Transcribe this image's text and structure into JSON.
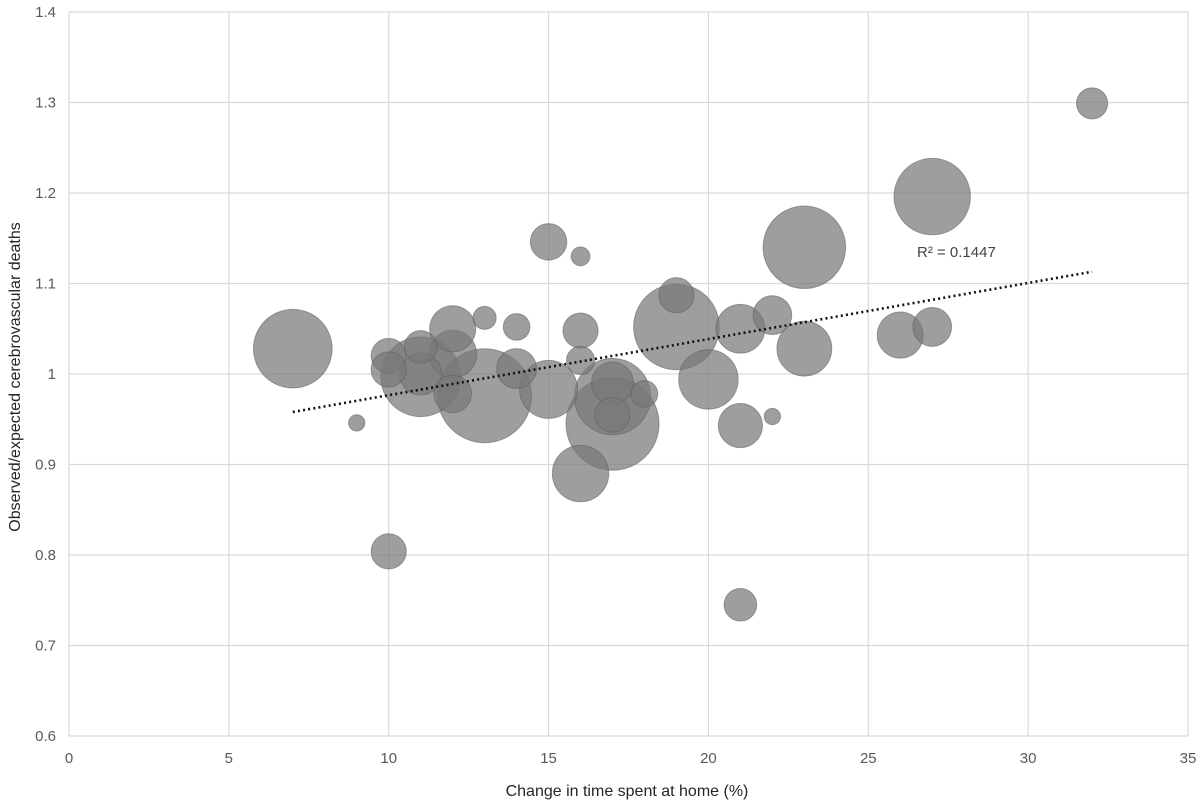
{
  "chart_data": {
    "type": "scatter",
    "subtype": "bubble",
    "xlabel": "Change in time spent at home (%)",
    "ylabel": "Observed/expected cerebrovascular  deaths",
    "xlim": [
      0,
      35
    ],
    "ylim": [
      0.6,
      1.4
    ],
    "x_ticks": [
      "0",
      "5",
      "10",
      "15",
      "20",
      "25",
      "30",
      "35"
    ],
    "y_ticks": [
      "0.6",
      "0.7",
      "0.8",
      "0.9",
      "1",
      "1.1",
      "1.2",
      "1.3",
      "1.4"
    ],
    "grid": true,
    "bubble_color": "#787878",
    "points": [
      {
        "x": 7,
        "y": 1.028,
        "size": 0.7
      },
      {
        "x": 9,
        "y": 0.946,
        "size": 0.03
      },
      {
        "x": 10,
        "y": 1.02,
        "size": 0.14
      },
      {
        "x": 10,
        "y": 1.005,
        "size": 0.14
      },
      {
        "x": 10,
        "y": 0.804,
        "size": 0.14
      },
      {
        "x": 11,
        "y": 1.03,
        "size": 0.12
      },
      {
        "x": 11,
        "y": 0.997,
        "size": 0.72
      },
      {
        "x": 11,
        "y": 1.0,
        "size": 0.2
      },
      {
        "x": 12,
        "y": 1.05,
        "size": 0.24
      },
      {
        "x": 12,
        "y": 1.022,
        "size": 0.26
      },
      {
        "x": 12,
        "y": 0.978,
        "size": 0.16
      },
      {
        "x": 13,
        "y": 1.062,
        "size": 0.06
      },
      {
        "x": 13,
        "y": 0.976,
        "size": 1.0
      },
      {
        "x": 14,
        "y": 1.052,
        "size": 0.08
      },
      {
        "x": 14,
        "y": 1.006,
        "size": 0.18
      },
      {
        "x": 15,
        "y": 1.146,
        "size": 0.15
      },
      {
        "x": 15,
        "y": 0.983,
        "size": 0.38
      },
      {
        "x": 16,
        "y": 1.13,
        "size": 0.04
      },
      {
        "x": 16,
        "y": 1.048,
        "size": 0.14
      },
      {
        "x": 16,
        "y": 1.015,
        "size": 0.09
      },
      {
        "x": 16,
        "y": 0.89,
        "size": 0.36
      },
      {
        "x": 17,
        "y": 0.975,
        "size": 0.66
      },
      {
        "x": 17,
        "y": 0.99,
        "size": 0.2
      },
      {
        "x": 17,
        "y": 0.955,
        "size": 0.14
      },
      {
        "x": 17,
        "y": 0.945,
        "size": 0.98
      },
      {
        "x": 18,
        "y": 0.978,
        "size": 0.08
      },
      {
        "x": 19,
        "y": 1.087,
        "size": 0.14
      },
      {
        "x": 19,
        "y": 1.052,
        "size": 0.83
      },
      {
        "x": 20,
        "y": 0.994,
        "size": 0.4
      },
      {
        "x": 21,
        "y": 1.05,
        "size": 0.27
      },
      {
        "x": 21,
        "y": 0.943,
        "size": 0.22
      },
      {
        "x": 21,
        "y": 0.745,
        "size": 0.12
      },
      {
        "x": 22,
        "y": 1.065,
        "size": 0.17
      },
      {
        "x": 22,
        "y": 0.953,
        "size": 0.03
      },
      {
        "x": 23,
        "y": 1.14,
        "size": 0.77
      },
      {
        "x": 23,
        "y": 1.028,
        "size": 0.34
      },
      {
        "x": 26,
        "y": 1.043,
        "size": 0.24
      },
      {
        "x": 27,
        "y": 1.196,
        "size": 0.66
      },
      {
        "x": 27,
        "y": 1.052,
        "size": 0.17
      },
      {
        "x": 32,
        "y": 1.299,
        "size": 0.11
      }
    ],
    "trendline": {
      "type": "linear",
      "from": [
        7,
        0.958
      ],
      "to": [
        32,
        1.113
      ],
      "label": "R² = 0.1447"
    }
  }
}
